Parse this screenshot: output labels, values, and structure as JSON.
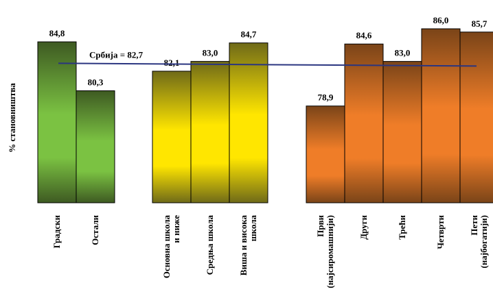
{
  "chart_data": {
    "type": "bar",
    "ylabel": "% становништва",
    "ylim": [
      70,
      88
    ],
    "grid": false,
    "legend": "none",
    "groups": [
      {
        "colors": [
          "#3e5a22",
          "#7bc242"
        ],
        "categories": [
          {
            "label": [
              "Градски"
            ],
            "value": 84.8
          },
          {
            "label": [
              "Остали"
            ],
            "value": 80.3
          }
        ]
      },
      {
        "colors": [
          "#6f6a18",
          "#ffe600"
        ],
        "categories": [
          {
            "label": [
              "Основна школа",
              "и ниже"
            ],
            "value": 82.1
          },
          {
            "label": [
              "Средња школа"
            ],
            "value": 83.0
          },
          {
            "label": [
              "Виша и висока",
              "школа"
            ],
            "value": 84.7
          }
        ]
      },
      {
        "colors": [
          "#7a4418",
          "#ef7d28"
        ],
        "categories": [
          {
            "label": [
              "Први",
              "(најсиромашнији)"
            ],
            "value": 78.9
          },
          {
            "label": [
              "Други"
            ],
            "value": 84.6
          },
          {
            "label": [
              "Трећи"
            ],
            "value": 83.0
          },
          {
            "label": [
              "Четврти"
            ],
            "value": 86.0
          },
          {
            "label": [
              "Пети",
              "(најбогатији)"
            ],
            "value": 85.7
          }
        ]
      }
    ],
    "reference_line": {
      "label": "Србија = 82,7",
      "value": 82.7,
      "color": "#2a3580"
    }
  }
}
